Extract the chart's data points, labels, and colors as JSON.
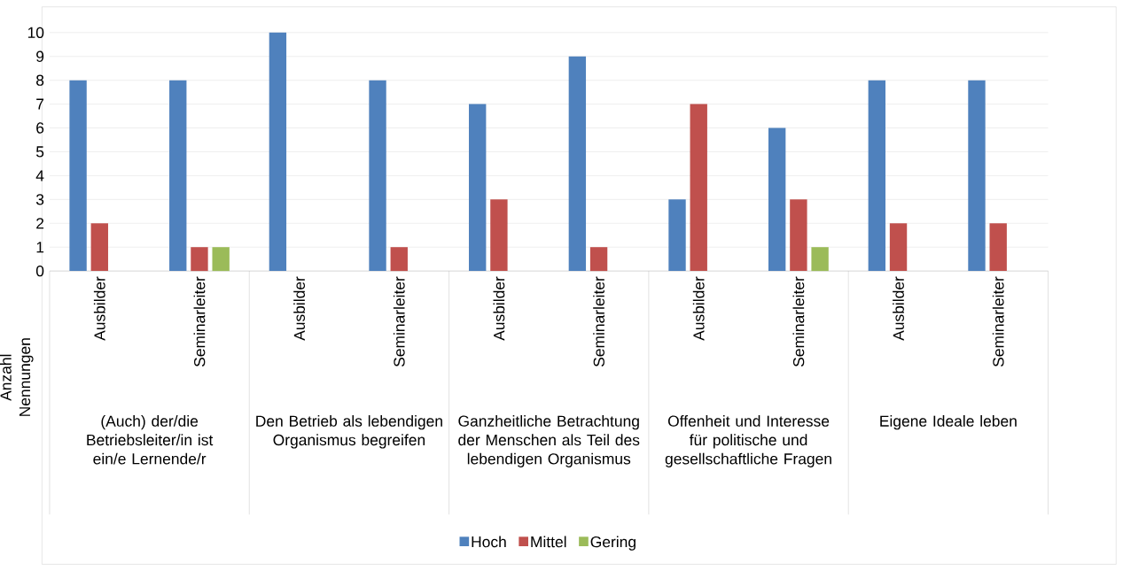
{
  "chart_data": {
    "type": "bar",
    "ylabel": "Anzahl Nennungen",
    "categories": [
      "Ausbilder",
      "Seminarleiter",
      "Ausbilder",
      "Seminarleiter",
      "Ausbilder",
      "Seminarleiter",
      "Ausbilder",
      "Seminarleiter",
      "Ausbilder",
      "Seminarleiter"
    ],
    "series": [
      {
        "name": "Hoch",
        "color": "#4f81bd",
        "values": [
          8,
          8,
          10,
          8,
          7,
          9,
          3,
          6,
          8,
          8
        ]
      },
      {
        "name": "Mittel",
        "color": "#c0504d",
        "values": [
          2,
          1,
          null,
          1,
          3,
          1,
          7,
          3,
          2,
          2
        ]
      },
      {
        "name": "Gering",
        "color": "#9bbb59",
        "values": [
          null,
          1,
          null,
          null,
          null,
          null,
          null,
          1,
          null,
          null
        ]
      }
    ],
    "annotations": [
      "(Auch) der/die Betriebsleiter/in ist ein/e Lernende/r",
      "Den Betrieb als lebendigen Organismus begreifen",
      "Ganzheitliche Betrachtung der Menschen als Teil des lebendigen Organismus",
      "Offenheit und Interesse für politische und gesellschaftliche Fragen",
      "Eigene Ideale leben"
    ],
    "ylim": [
      0,
      10
    ],
    "yticks": [
      0,
      1,
      2,
      3,
      4,
      5,
      6,
      7,
      8,
      9,
      10
    ],
    "grid": "y",
    "legend": "bottom"
  }
}
